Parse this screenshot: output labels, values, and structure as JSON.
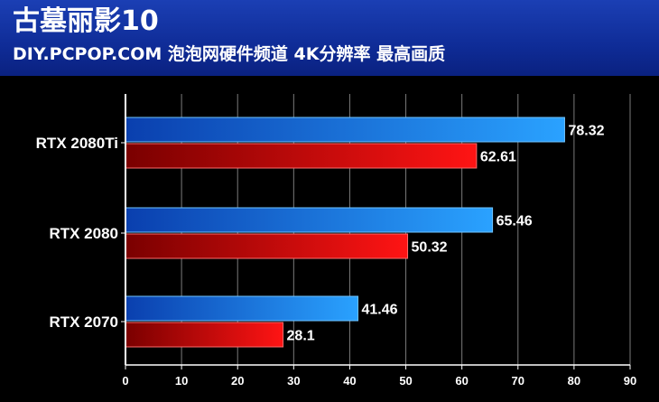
{
  "header": {
    "title": "古墓丽影10",
    "subtitle": "DIY.PCPOP.COM 泡泡网硬件频道 4K分辨率 最高画质"
  },
  "colors": {
    "header_bg": "#0f2c97",
    "series_blue": "#1e8cf0",
    "series_red": "#e00000"
  },
  "chart_data": {
    "type": "bar",
    "orientation": "horizontal",
    "categories": [
      "RTX 2080Ti",
      "RTX 2080",
      "RTX 2070"
    ],
    "series": [
      {
        "values": [
          78.32,
          65.46,
          41.46
        ]
      },
      {
        "values": [
          62.61,
          50.32,
          28.1
        ]
      }
    ],
    "xlim": [
      0,
      90
    ],
    "xticks": [
      "0",
      "10",
      "20",
      "30",
      "40",
      "50",
      "60",
      "70",
      "80",
      "90"
    ],
    "grid": true
  }
}
